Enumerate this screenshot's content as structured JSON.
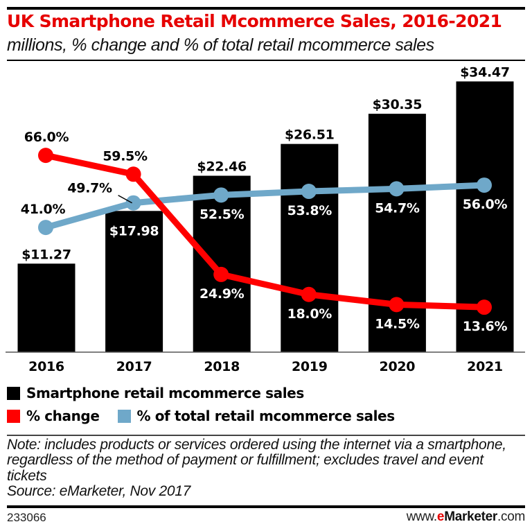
{
  "header": {
    "title": "UK Smartphone Retail Mcommerce Sales, 2016-2021",
    "subtitle": "millions, % change and % of total retail mcommerce sales"
  },
  "colors": {
    "bars": "#000000",
    "pct_change": "#ff0000",
    "pct_total": "#6fa8c9",
    "title": "#e60000"
  },
  "chart_data": {
    "type": "bar",
    "title": "UK Smartphone Retail Mcommerce Sales, 2016-2021",
    "subtitle": "millions, % change and % of total retail mcommerce sales",
    "xlabel": "",
    "ylabel": "",
    "categories": [
      "2016",
      "2017",
      "2018",
      "2019",
      "2020",
      "2021"
    ],
    "grid": false,
    "legend_position": "bottom-left",
    "series": [
      {
        "name": "Smartphone retail mcommerce sales",
        "type": "bar",
        "values": [
          11.27,
          17.98,
          22.46,
          26.51,
          30.35,
          34.47
        ],
        "labels": [
          "$11.27",
          "$17.98",
          "$22.46",
          "$26.51",
          "$30.35",
          "$34.47"
        ]
      },
      {
        "name": "% change",
        "type": "line",
        "values": [
          66.0,
          59.5,
          24.9,
          18.0,
          14.5,
          13.6
        ],
        "labels": [
          "66.0%",
          "59.5%",
          "24.9%",
          "18.0%",
          "14.5%",
          "13.6%"
        ]
      },
      {
        "name": "% of total retail mcommerce sales",
        "type": "line",
        "values": [
          41.0,
          49.7,
          52.5,
          53.8,
          54.7,
          56.0
        ],
        "labels": [
          "41.0%",
          "49.7%",
          "52.5%",
          "53.8%",
          "54.7%",
          "56.0%"
        ]
      }
    ]
  },
  "legend": {
    "bars": "Smartphone retail mcommerce sales",
    "pct_change": "% change",
    "pct_total": "% of total retail mcommerce sales"
  },
  "footer": {
    "note": "Note: includes products or services ordered using the internet via a smartphone, regardless of the method of payment or fulfillment; excludes travel and event tickets",
    "source": "Source: eMarketer, Nov 2017",
    "chart_id": "233066",
    "site_prefix": "www.",
    "site_e": "e",
    "site_brand": "Marketer",
    "site_suffix": ".com"
  }
}
